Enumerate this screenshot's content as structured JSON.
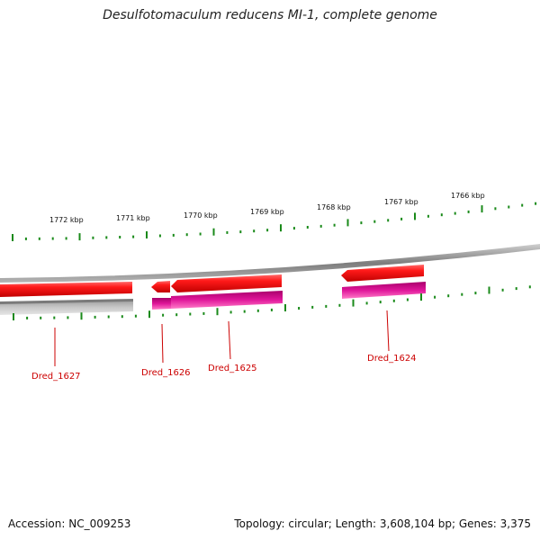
{
  "title": "Desulfotomaculum reducens MI-1, complete genome",
  "accession": "Accession: NC_009253",
  "summary": "Topology: circular; Length: 3,608,104 bp; Genes: 3,375",
  "colors": {
    "forward_gene": "#ee1111",
    "reverse_gene": "#e0169a",
    "backbone": "#888888",
    "ticks": "#1a8a1a",
    "label": "#cc0000"
  },
  "scale_labels": [
    "1772 kbp",
    "1771 kbp",
    "1770 kbp",
    "1769 kbp",
    "1768 kbp",
    "1767 kbp",
    "1766 kbp"
  ],
  "genes": [
    {
      "name": "Dred_1627"
    },
    {
      "name": "Dred_1626"
    },
    {
      "name": "Dred_1625"
    },
    {
      "name": "Dred_1624"
    }
  ]
}
